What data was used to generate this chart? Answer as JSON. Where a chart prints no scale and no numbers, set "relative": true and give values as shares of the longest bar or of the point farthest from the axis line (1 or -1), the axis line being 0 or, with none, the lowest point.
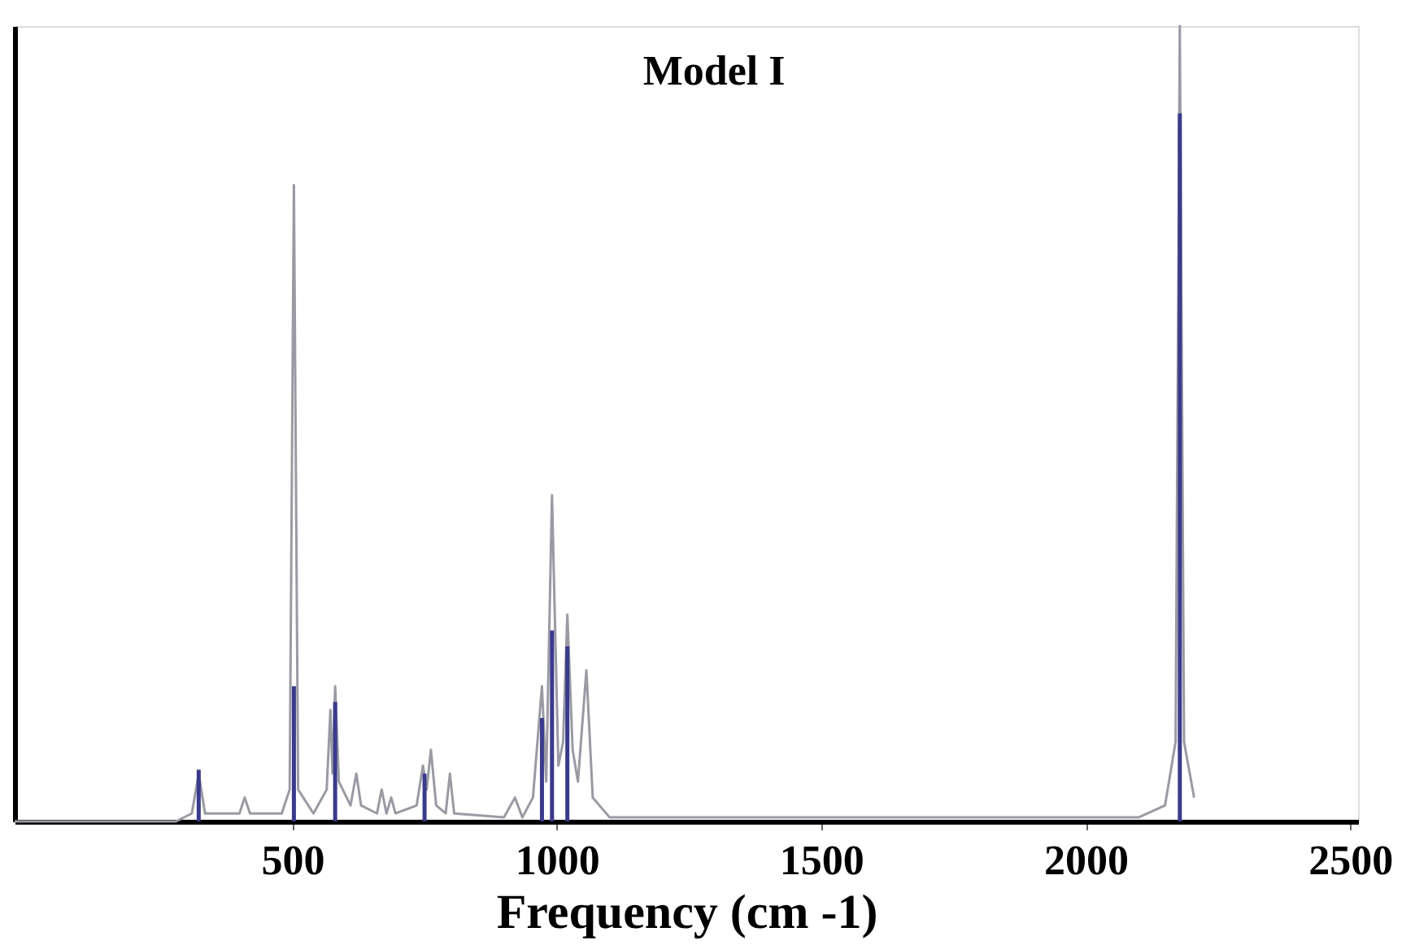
{
  "chart_data": {
    "type": "line",
    "title": "Model I",
    "xlabel": "Frequency (cm -1)",
    "relative": true,
    "xlim": [
      -25,
      2515
    ],
    "xticks": [
      500,
      1000,
      1500,
      2000,
      2500
    ],
    "tick_labels": "x",
    "grid": false,
    "series": [
      {
        "color": "#9a9aa4",
        "x": [
          -25,
          280,
          310,
          323,
          335,
          400,
          410,
          420,
          480,
          495,
          503,
          511,
          540,
          565,
          572,
          576,
          581,
          588,
          610,
          621,
          630,
          660,
          669,
          678,
          687,
          695,
          735,
          747,
          754,
          762,
          772,
          790,
          798,
          806,
          900,
          921,
          935,
          955,
          972,
          980,
          991,
          1003,
          1012,
          1020,
          1030,
          1040,
          1056,
          1068,
          1100,
          2100,
          2150,
          2170,
          2178,
          2186,
          2205
        ],
        "values": [
          0,
          0,
          0.01,
          0.06,
          0.01,
          0.01,
          0.03,
          0.01,
          0.01,
          0.04,
          0.8,
          0.04,
          0.01,
          0.04,
          0.14,
          0.06,
          0.17,
          0.05,
          0.02,
          0.06,
          0.02,
          0.01,
          0.04,
          0.01,
          0.03,
          0.01,
          0.02,
          0.07,
          0.04,
          0.09,
          0.02,
          0.01,
          0.06,
          0.01,
          0.005,
          0.03,
          0.005,
          0.03,
          0.17,
          0.05,
          0.41,
          0.07,
          0.1,
          0.26,
          0.09,
          0.05,
          0.19,
          0.03,
          0.005,
          0.005,
          0.02,
          0.1,
          1.0,
          0.1,
          0.03
        ]
      },
      {
        "type": "bar",
        "color": "#3a3a8c",
        "x": [
          323,
          503,
          581,
          750,
          972,
          991,
          1020,
          2178
        ],
        "values": [
          0.065,
          0.17,
          0.15,
          0.06,
          0.13,
          0.24,
          0.22,
          0.89
        ]
      }
    ]
  }
}
